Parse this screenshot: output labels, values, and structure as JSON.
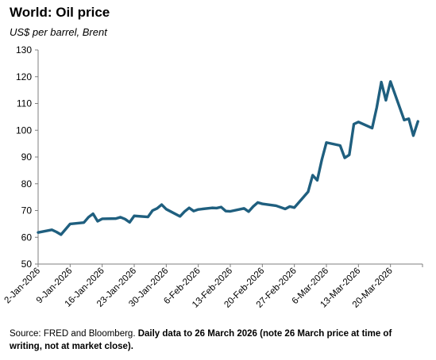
{
  "chart_data": {
    "type": "line",
    "title": "World: Oil price",
    "subtitle": "US$ per barrel, Brent",
    "xlabel": "",
    "ylabel": "",
    "ylim": [
      50,
      130
    ],
    "yticks": [
      50,
      60,
      70,
      80,
      90,
      100,
      110,
      120,
      130
    ],
    "xlim": [
      "2026-01-02",
      "2026-03-27"
    ],
    "xticks": [
      "2-Jan-2026",
      "9-Jan-2026",
      "16-Jan-2026",
      "23-Jan-2026",
      "30-Jan-2026",
      "6-Feb-2026",
      "13-Feb-2026",
      "20-Feb-2026",
      "27-Feb-2026",
      "6-Mar-2026",
      "13-Mar-2026",
      "20-Mar-2026"
    ],
    "grid": false,
    "legend": "none",
    "color": "#1f5f7f",
    "series": [
      {
        "points": [
          [
            "2026-01-02",
            61.8
          ],
          [
            "2026-01-05",
            62.8
          ],
          [
            "2026-01-06",
            62.0
          ],
          [
            "2026-01-07",
            61.0
          ],
          [
            "2026-01-08",
            63.0
          ],
          [
            "2026-01-09",
            65.0
          ],
          [
            "2026-01-12",
            65.5
          ],
          [
            "2026-01-13",
            67.5
          ],
          [
            "2026-01-14",
            68.8
          ],
          [
            "2026-01-15",
            66.0
          ],
          [
            "2026-01-16",
            66.9
          ],
          [
            "2026-01-19",
            67.0
          ],
          [
            "2026-01-20",
            67.5
          ],
          [
            "2026-01-21",
            66.8
          ],
          [
            "2026-01-22",
            65.6
          ],
          [
            "2026-01-23",
            68.0
          ],
          [
            "2026-01-26",
            67.6
          ],
          [
            "2026-01-27",
            70.0
          ],
          [
            "2026-01-28",
            70.8
          ],
          [
            "2026-01-29",
            72.2
          ],
          [
            "2026-01-30",
            70.5
          ],
          [
            "2026-02-02",
            67.8
          ],
          [
            "2026-02-03",
            69.6
          ],
          [
            "2026-02-04",
            71.0
          ],
          [
            "2026-02-05",
            69.8
          ],
          [
            "2026-02-06",
            70.4
          ],
          [
            "2026-02-09",
            71.0
          ],
          [
            "2026-02-10",
            70.9
          ],
          [
            "2026-02-11",
            71.3
          ],
          [
            "2026-02-12",
            69.8
          ],
          [
            "2026-02-13",
            69.7
          ],
          [
            "2026-02-16",
            70.8
          ],
          [
            "2026-02-17",
            69.6
          ],
          [
            "2026-02-18",
            71.5
          ],
          [
            "2026-02-19",
            73.0
          ],
          [
            "2026-02-20",
            72.5
          ],
          [
            "2026-02-23",
            71.8
          ],
          [
            "2026-02-24",
            71.2
          ],
          [
            "2026-02-25",
            70.6
          ],
          [
            "2026-02-26",
            71.5
          ],
          [
            "2026-02-27",
            71.1
          ],
          [
            "2026-03-02",
            77.0
          ],
          [
            "2026-03-03",
            83.2
          ],
          [
            "2026-03-04",
            81.3
          ],
          [
            "2026-03-05",
            89.0
          ],
          [
            "2026-03-06",
            95.4
          ],
          [
            "2026-03-09",
            94.3
          ],
          [
            "2026-03-10",
            89.7
          ],
          [
            "2026-03-11",
            90.8
          ],
          [
            "2026-03-12",
            102.3
          ],
          [
            "2026-03-13",
            103.1
          ],
          [
            "2026-03-16",
            100.8
          ],
          [
            "2026-03-17",
            108.5
          ],
          [
            "2026-03-18",
            118.0
          ],
          [
            "2026-03-19",
            111.2
          ],
          [
            "2026-03-20",
            118.2
          ],
          [
            "2026-03-23",
            103.8
          ],
          [
            "2026-03-24",
            104.3
          ],
          [
            "2026-03-25",
            98.0
          ],
          [
            "2026-03-26",
            103.3
          ]
        ]
      }
    ]
  },
  "source": {
    "normal": "Source: FRED and Bloomberg. ",
    "bold": "Daily data to 26 March 2026 (note 26 March price at time of writing, not at market close)."
  }
}
